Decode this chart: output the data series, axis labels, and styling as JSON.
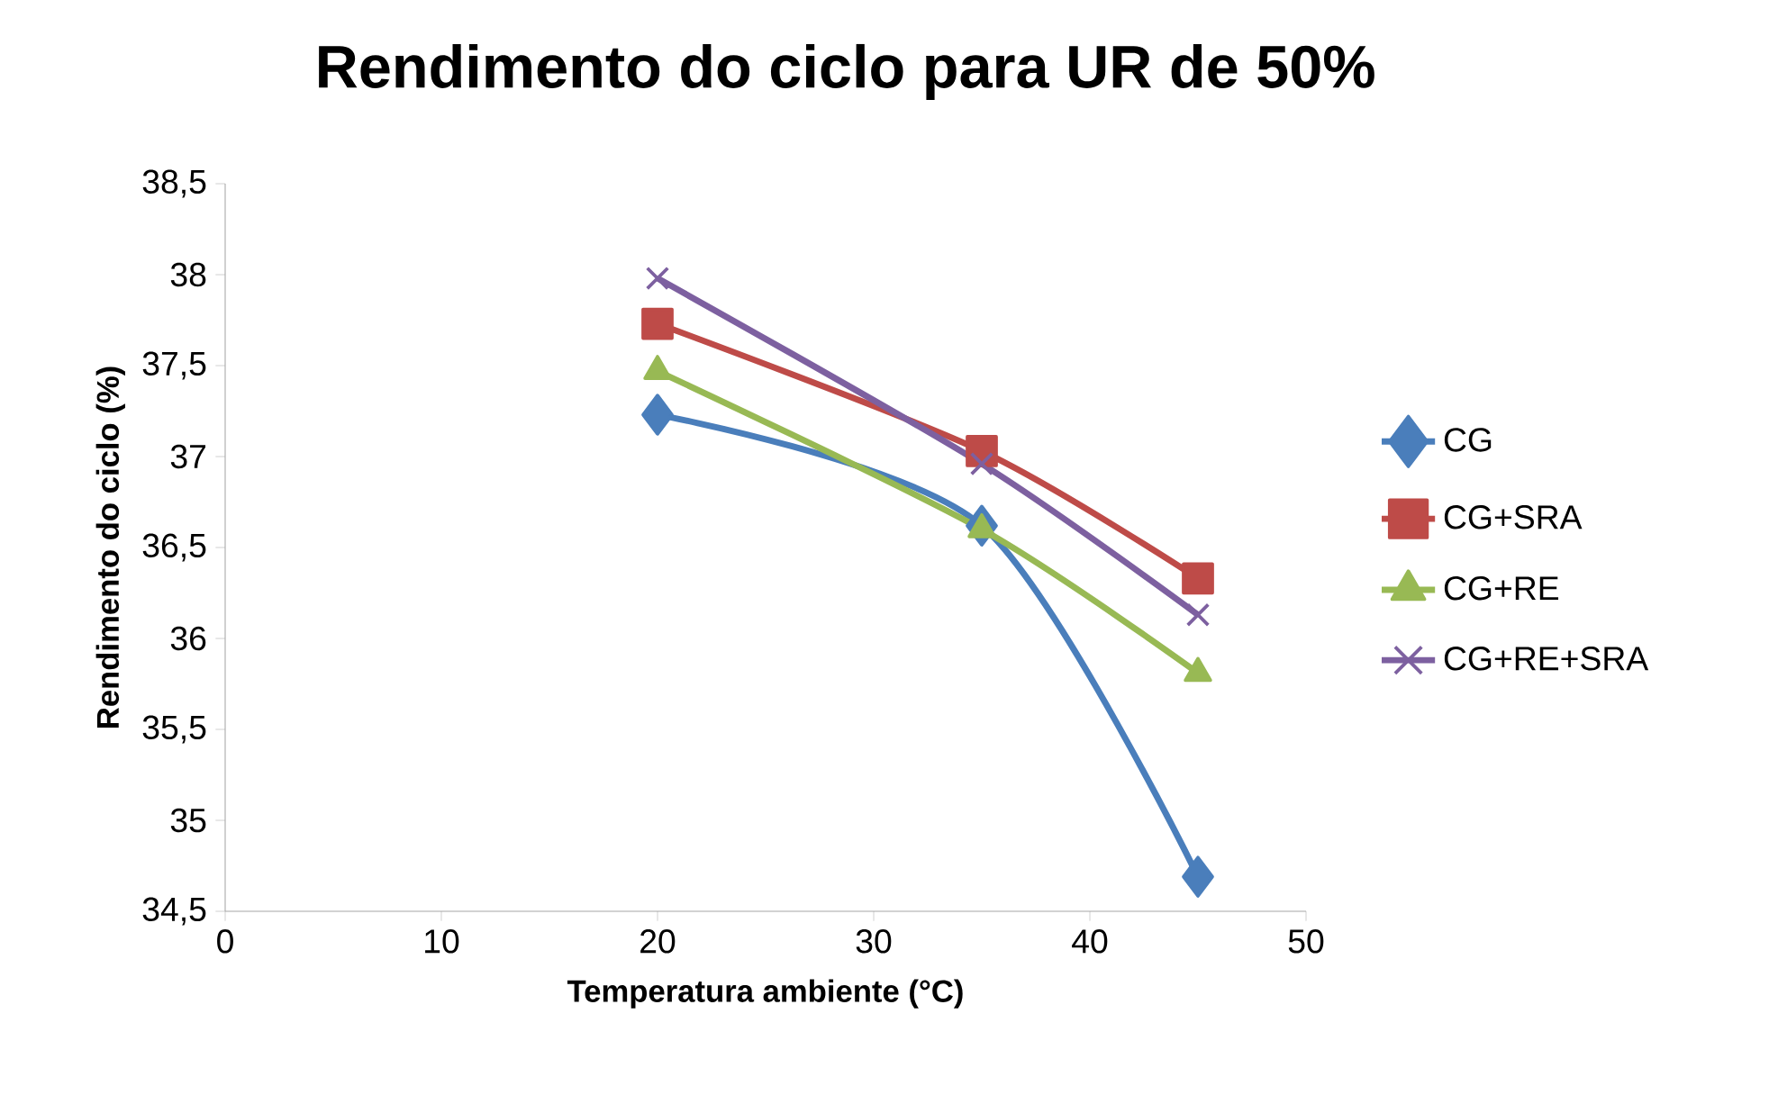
{
  "chart_data": {
    "type": "line",
    "title": "Rendimento do ciclo para UR de 50%",
    "xlabel": "Temperatura ambiente (°C)",
    "ylabel": "Rendimento do ciclo (%)",
    "x": [
      20,
      35,
      45
    ],
    "series": [
      {
        "name": "CG",
        "color": "#4a7ebb",
        "marker": "diamond",
        "values": [
          37.23,
          36.62,
          34.69
        ]
      },
      {
        "name": "CG+SRA",
        "color": "#be4b48",
        "marker": "square",
        "values": [
          37.73,
          37.03,
          36.33
        ]
      },
      {
        "name": "CG+RE",
        "color": "#98b954",
        "marker": "triangle",
        "values": [
          37.47,
          36.6,
          35.81
        ]
      },
      {
        "name": "CG+RE+SRA",
        "color": "#7d60a0",
        "marker": "cross",
        "values": [
          37.98,
          36.96,
          36.13
        ]
      }
    ],
    "xlim": [
      0,
      50
    ],
    "xticks": [
      0,
      10,
      20,
      30,
      40,
      50
    ],
    "ylim": [
      34.5,
      38.5
    ],
    "yticks": [
      {
        "value": 34.5,
        "label": "34,5"
      },
      35,
      {
        "value": 35.5,
        "label": "35,5"
      },
      36,
      {
        "value": 36.5,
        "label": "36,5"
      },
      37,
      {
        "value": 37.5,
        "label": "37,5"
      },
      38,
      {
        "value": 38.5,
        "label": "38,5"
      }
    ],
    "grid": false,
    "legend": "right",
    "line_style": "solid"
  }
}
